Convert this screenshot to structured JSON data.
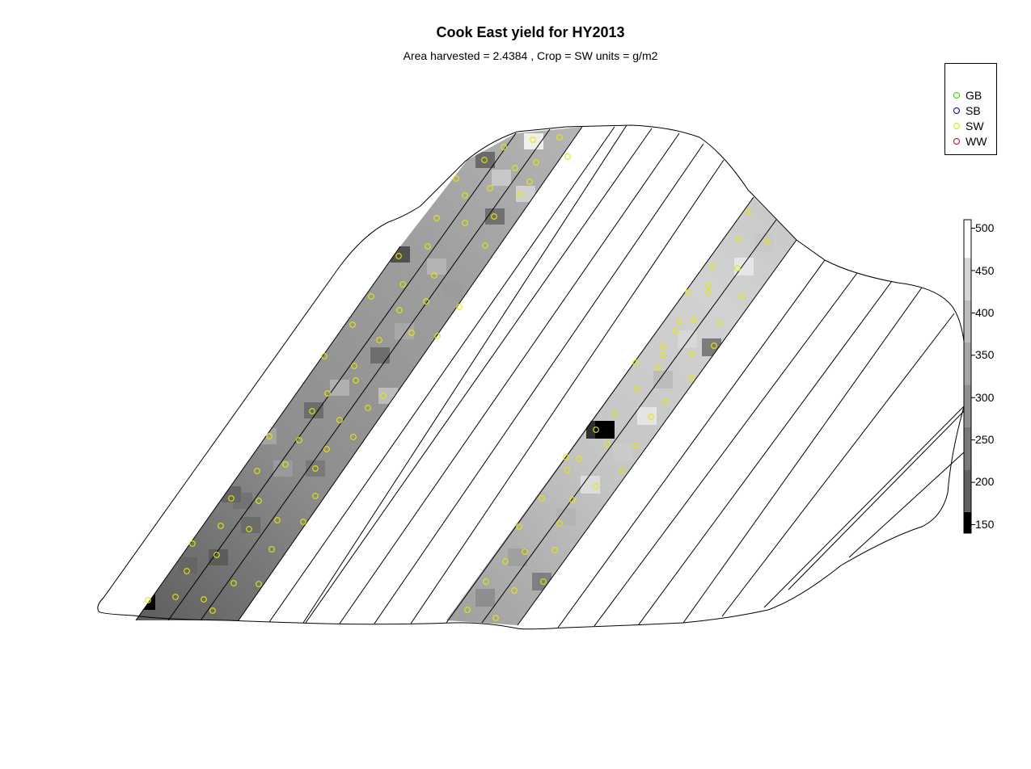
{
  "title": "Cook East yield for HY2013",
  "subtitle": "Area harvested =  2.4384 , Crop =  SW  units = g/m2",
  "legend": {
    "items": [
      {
        "label": "GB",
        "color": "#33cc00"
      },
      {
        "label": "SB",
        "color": "#000080"
      },
      {
        "label": "SW",
        "color": "#e0e000"
      },
      {
        "label": "WW",
        "color": "#cc0000"
      }
    ]
  },
  "colorbar": {
    "ticks": [
      "500",
      "450",
      "400",
      "350",
      "300",
      "250",
      "200",
      "150"
    ],
    "min": 140,
    "max": 510,
    "bands": [
      {
        "from": 140,
        "to": 165,
        "color": "#000000"
      },
      {
        "from": 165,
        "to": 215,
        "color": "#5f5f5f"
      },
      {
        "from": 215,
        "to": 265,
        "color": "#797979"
      },
      {
        "from": 265,
        "to": 315,
        "color": "#8f8f8f"
      },
      {
        "from": 315,
        "to": 365,
        "color": "#a6a6a6"
      },
      {
        "from": 365,
        "to": 415,
        "color": "#bdbdbd"
      },
      {
        "from": 415,
        "to": 465,
        "color": "#d6d6d6"
      },
      {
        "from": 465,
        "to": 510,
        "color": "#ffffff"
      }
    ]
  },
  "map": {
    "crop_shown": "SW",
    "strips": [
      {
        "strip": "west",
        "yield_level": "low",
        "typical_yield": 260
      },
      {
        "strip": "east",
        "yield_level": "high",
        "typical_yield": 380
      }
    ]
  }
}
